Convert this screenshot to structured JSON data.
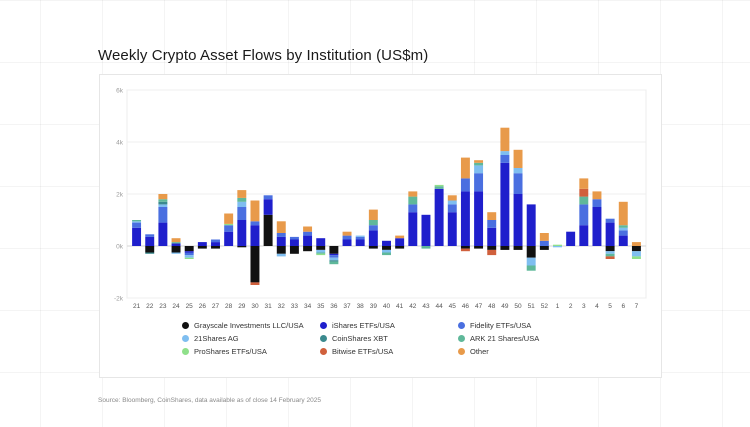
{
  "chart_data": {
    "type": "bar",
    "stacked": true,
    "title": "Weekly Crypto Asset Flows by Institution (US$m)",
    "source": "Source: Bloomberg, CoinShares, data available as of close 14 February 2025",
    "y_ticks": [
      "6k",
      "4k",
      "2k",
      "0k",
      "-2k"
    ],
    "y_tick_values": [
      6000,
      4000,
      2000,
      0,
      -2000
    ],
    "ylim": [
      -2000,
      6000
    ],
    "categories": [
      "21",
      "22",
      "23",
      "24",
      "25",
      "26",
      "27",
      "28",
      "29",
      "30",
      "31",
      "32",
      "33",
      "34",
      "35",
      "36",
      "37",
      "38",
      "39",
      "40",
      "41",
      "42",
      "43",
      "44",
      "45",
      "46",
      "47",
      "48",
      "49",
      "50",
      "51",
      "52",
      "1",
      "2",
      "3",
      "4",
      "5",
      "6",
      "7"
    ],
    "series": [
      {
        "name": "Grayscale Investments LLC/USA",
        "color": "#111111",
        "values": [
          0,
          -250,
          0,
          -250,
          -200,
          -100,
          -100,
          0,
          -50,
          -1400,
          1200,
          -300,
          -300,
          -200,
          -150,
          -300,
          0,
          0,
          -100,
          -150,
          -100,
          0,
          0,
          0,
          0,
          -100,
          -100,
          -150,
          -150,
          -150,
          -450,
          -150,
          0,
          0,
          0,
          0,
          -200,
          0,
          -200
        ]
      },
      {
        "name": "iShares ETFs/USA",
        "color": "#1f1fcc",
        "values": [
          700,
          350,
          900,
          100,
          -50,
          150,
          150,
          550,
          1000,
          800,
          600,
          350,
          250,
          400,
          300,
          -50,
          250,
          250,
          600,
          200,
          300,
          1300,
          1200,
          2200,
          1300,
          2100,
          2100,
          700,
          3200,
          2000,
          1600,
          0,
          0,
          550,
          800,
          1500,
          900,
          400,
          0
        ]
      },
      {
        "name": "Fidelity ETFs/USA",
        "color": "#4a6fe0",
        "values": [
          200,
          100,
          600,
          0,
          -100,
          0,
          100,
          250,
          500,
          150,
          150,
          150,
          100,
          150,
          0,
          -100,
          150,
          100,
          200,
          0,
          0,
          300,
          0,
          0,
          300,
          500,
          700,
          300,
          300,
          800,
          0,
          200,
          0,
          0,
          800,
          300,
          150,
          200,
          0
        ]
      },
      {
        "name": "21Shares AG",
        "color": "#7fbef0",
        "values": [
          50,
          0,
          100,
          -50,
          -100,
          0,
          0,
          0,
          200,
          0,
          0,
          -100,
          0,
          0,
          -100,
          -100,
          0,
          50,
          0,
          -100,
          0,
          0,
          0,
          0,
          150,
          0,
          300,
          0,
          150,
          200,
          -300,
          0,
          -50,
          0,
          0,
          0,
          -100,
          100,
          -200
        ]
      },
      {
        "name": "CoinShares XBT",
        "color": "#3b8a8e",
        "values": [
          0,
          -50,
          100,
          0,
          0,
          0,
          0,
          0,
          0,
          0,
          0,
          0,
          0,
          0,
          0,
          -50,
          0,
          0,
          0,
          0,
          0,
          0,
          0,
          0,
          0,
          0,
          0,
          0,
          0,
          0,
          0,
          0,
          0,
          0,
          0,
          0,
          0,
          0,
          0
        ]
      },
      {
        "name": "ARK 21 Shares/USA",
        "color": "#5fb89a",
        "values": [
          50,
          0,
          100,
          50,
          0,
          0,
          0,
          0,
          150,
          0,
          0,
          0,
          0,
          0,
          -50,
          -100,
          0,
          0,
          200,
          -100,
          0,
          300,
          -100,
          100,
          0,
          0,
          100,
          0,
          0,
          0,
          -200,
          0,
          0,
          0,
          300,
          0,
          -100,
          100,
          0
        ]
      },
      {
        "name": "ProShares ETFs/USA",
        "color": "#8fe08a",
        "values": [
          0,
          0,
          0,
          0,
          -50,
          0,
          0,
          50,
          0,
          0,
          0,
          0,
          0,
          0,
          -50,
          0,
          0,
          0,
          0,
          0,
          0,
          0,
          0,
          50,
          0,
          0,
          0,
          0,
          0,
          0,
          0,
          0,
          50,
          0,
          0,
          0,
          0,
          0,
          -100
        ]
      },
      {
        "name": "Bitwise ETFs/USA",
        "color": "#d0603c",
        "values": [
          0,
          0,
          0,
          0,
          0,
          0,
          0,
          0,
          0,
          -100,
          0,
          0,
          0,
          0,
          0,
          0,
          0,
          0,
          0,
          0,
          0,
          0,
          0,
          0,
          0,
          -100,
          0,
          -200,
          0,
          0,
          0,
          0,
          0,
          0,
          300,
          0,
          -100,
          0,
          0
        ]
      },
      {
        "name": "Other",
        "color": "#e89a4a",
        "values": [
          0,
          0,
          200,
          150,
          0,
          0,
          0,
          400,
          300,
          800,
          0,
          450,
          0,
          200,
          0,
          0,
          150,
          0,
          400,
          0,
          100,
          200,
          0,
          0,
          200,
          800,
          100,
          300,
          900,
          700,
          0,
          300,
          0,
          0,
          400,
          300,
          0,
          900,
          150
        ]
      }
    ]
  }
}
